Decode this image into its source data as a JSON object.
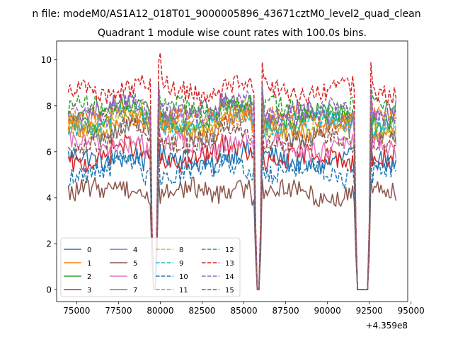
{
  "figure": {
    "suptitle": "n file: modeM0/AS1A12_018T01_9000005896_43671cztM0_level2_quad_clean"
  },
  "chart_data": {
    "type": "line",
    "title": "Quadrant 1 module wise count rates with 100.0s bins.",
    "xlabel": "",
    "ylabel": "",
    "offset_text": "+4.359e8",
    "xlim": [
      73800,
      94800
    ],
    "ylim": [
      -0.52,
      10.82
    ],
    "x_ticks": [
      75000,
      77500,
      80000,
      82500,
      85000,
      87500,
      90000,
      92500,
      95000
    ],
    "x_tick_labels": [
      "75000",
      "77500",
      "80000",
      "82500",
      "85000",
      "87500",
      "90000",
      "92500",
      "95000"
    ],
    "y_ticks": [
      0,
      2,
      4,
      6,
      8,
      10
    ],
    "y_tick_labels": [
      "0",
      "2",
      "4",
      "6",
      "8",
      "10"
    ],
    "x_range": [
      74500,
      94100
    ],
    "bin": 100,
    "gaps": [
      {
        "from": 79500,
        "to": 79800
      },
      {
        "from": 85700,
        "to": 86000
      },
      {
        "from": 91700,
        "to": 92500
      }
    ],
    "legend": {
      "loc": "lower left",
      "ncol": 4
    },
    "series": [
      {
        "name": "0",
        "color": "#1f77b4",
        "dash": false,
        "level": 5.6
      },
      {
        "name": "1",
        "color": "#ff7f0e",
        "dash": false,
        "level": 7.0
      },
      {
        "name": "2",
        "color": "#2ca02c",
        "dash": false,
        "level": 7.5
      },
      {
        "name": "3",
        "color": "#d62728",
        "dash": false,
        "level": 5.7
      },
      {
        "name": "4",
        "color": "#9467bd",
        "dash": false,
        "level": 7.6
      },
      {
        "name": "5",
        "color": "#8c564b",
        "dash": false,
        "level": 4.2
      },
      {
        "name": "6",
        "color": "#e377c2",
        "dash": false,
        "level": 6.2
      },
      {
        "name": "7",
        "color": "#7f7f7f",
        "dash": false,
        "level": 6.9
      },
      {
        "name": "8",
        "color": "#bcbd22",
        "dash": true,
        "level": 7.2
      },
      {
        "name": "9",
        "color": "#17becf",
        "dash": true,
        "level": 7.3
      },
      {
        "name": "10",
        "color": "#1f77b4",
        "dash": true,
        "level": 5.1
      },
      {
        "name": "11",
        "color": "#ff7f0e",
        "dash": true,
        "level": 7.4
      },
      {
        "name": "12",
        "color": "#2ca02c",
        "dash": true,
        "level": 7.8
      },
      {
        "name": "13",
        "color": "#d62728",
        "dash": true,
        "level": 8.6
      },
      {
        "name": "14",
        "color": "#9467bd",
        "dash": true,
        "level": 7.7
      },
      {
        "name": "15",
        "color": "#8c564b",
        "dash": true,
        "level": 6.5
      }
    ],
    "grid": false
  }
}
